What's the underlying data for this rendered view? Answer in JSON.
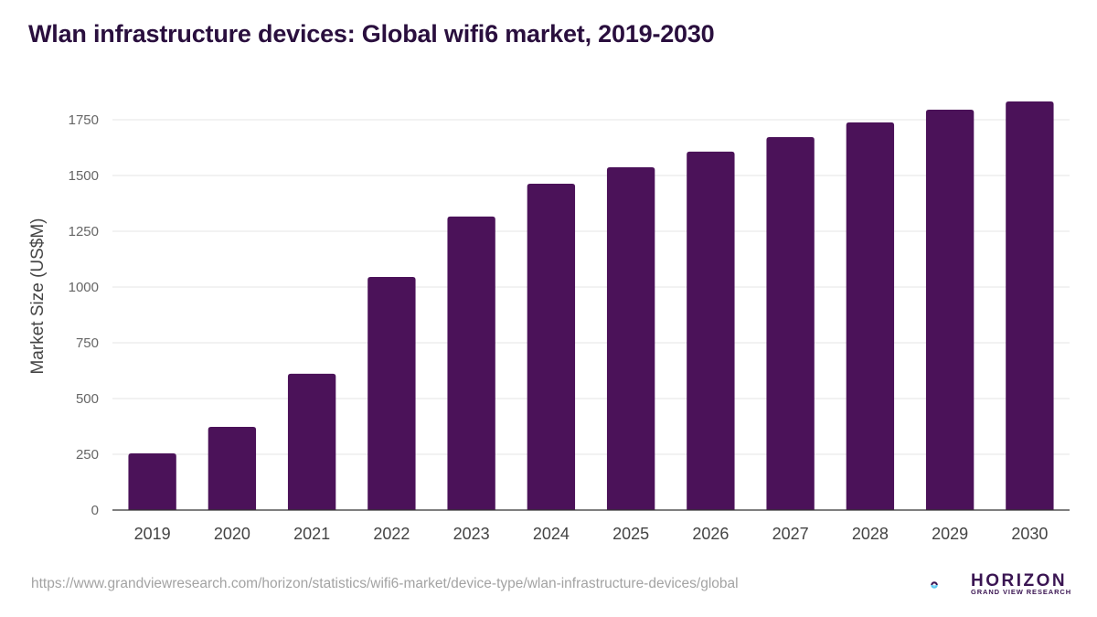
{
  "page": {
    "title": "Wlan infrastructure devices: Global wifi6 market, 2019-2030",
    "source_url": "https://www.grandviewresearch.com/horizon/statistics/wifi6-market/device-type/wlan-infrastructure-devices/global",
    "logo": {
      "name": "HORIZON",
      "subtitle": "GRAND VIEW RESEARCH"
    }
  },
  "colors": {
    "bar": "#4b1259",
    "title": "#2a0f3e",
    "grid": "#e6e6e6",
    "axis": "#333333",
    "tick_text": "#666666",
    "logo_dark": "#3a1552",
    "logo_light": "#5ec8f0"
  },
  "chart_data": {
    "type": "bar",
    "title": "Wlan infrastructure devices: Global wifi6 market, 2019-2030",
    "xlabel": "",
    "ylabel": "Market Size (US$M)",
    "categories": [
      "2019",
      "2020",
      "2021",
      "2022",
      "2023",
      "2024",
      "2025",
      "2026",
      "2027",
      "2028",
      "2029",
      "2030"
    ],
    "values": [
      254,
      373,
      611,
      1045,
      1316,
      1463,
      1537,
      1607,
      1672,
      1738,
      1795,
      1832
    ],
    "ylim": [
      0,
      1750
    ],
    "yticks": [
      0,
      250,
      500,
      750,
      1000,
      1250,
      1500,
      1750
    ],
    "ytick_labels": [
      "0",
      "250",
      "500",
      "750",
      "1000",
      "1250",
      "1500",
      "1750"
    ],
    "grid": true,
    "legend": "none"
  }
}
